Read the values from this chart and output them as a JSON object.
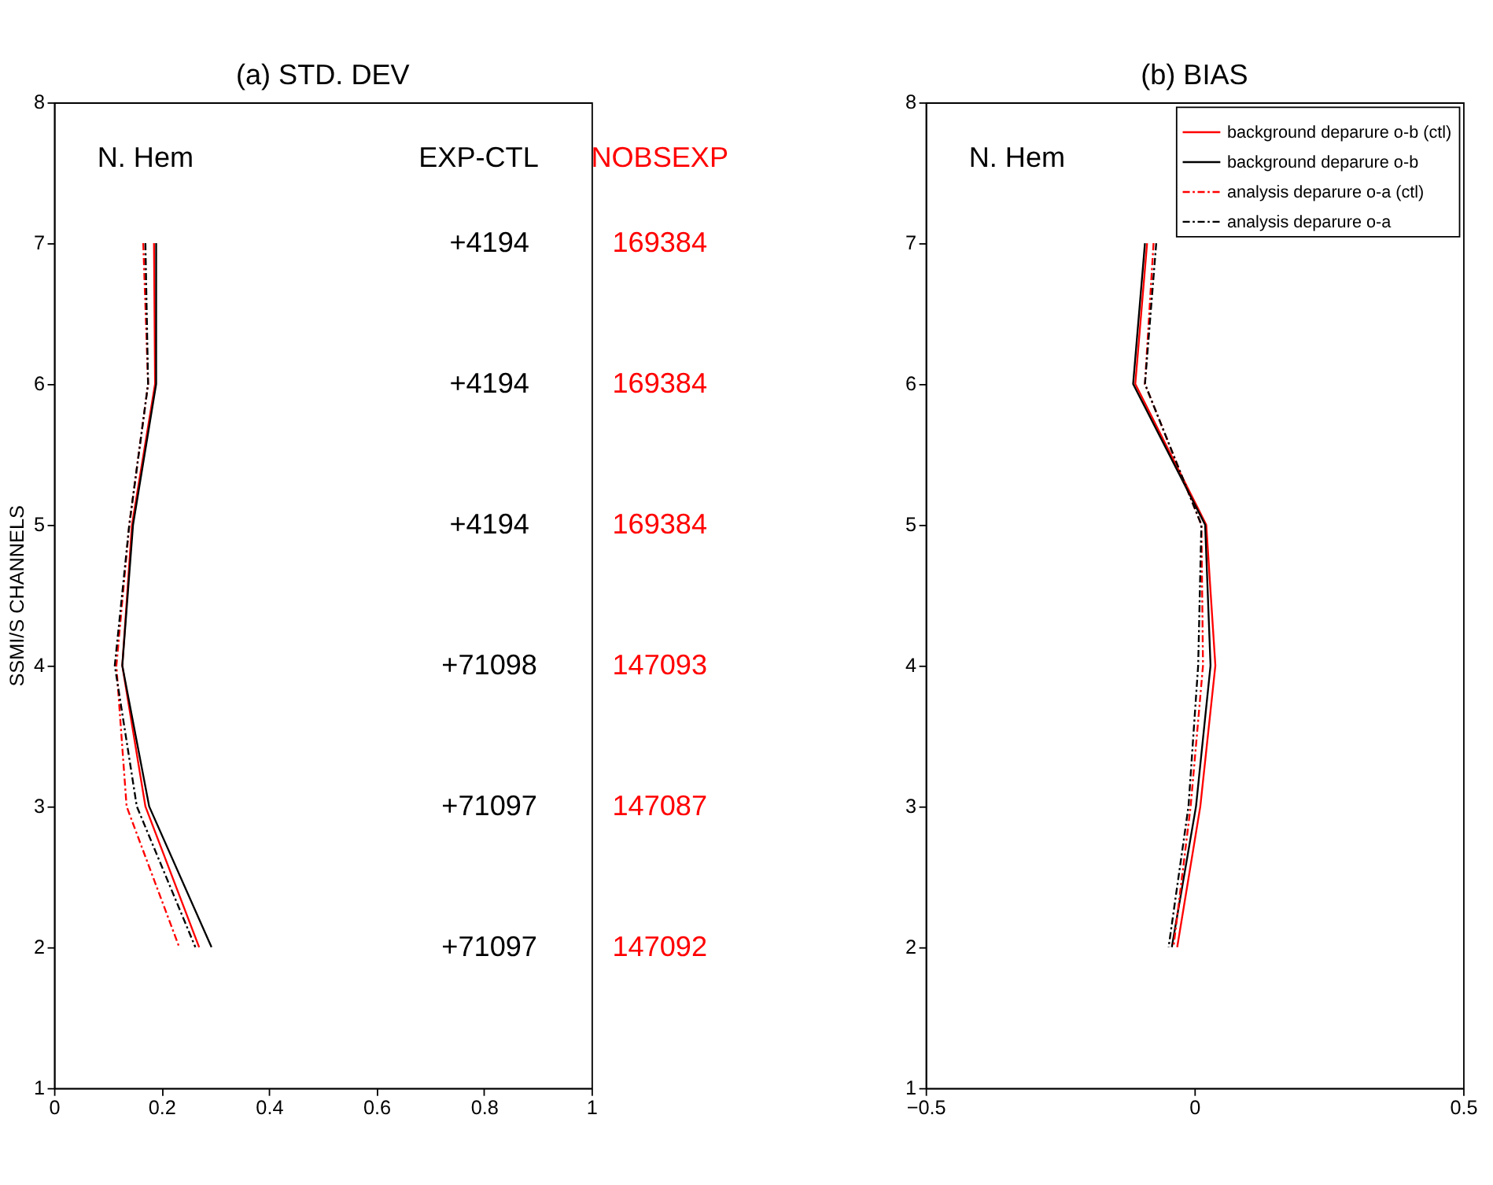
{
  "chart_data": [
    {
      "type": "line",
      "title": "(a) STD. DEV",
      "ylabel": "SSMI/S CHANNELS",
      "xlim": [
        0,
        1
      ],
      "xticks": [
        0,
        0.2,
        0.4,
        0.6,
        0.8,
        1
      ],
      "ylim": [
        1,
        8
      ],
      "yticks": [
        1,
        2,
        3,
        4,
        5,
        6,
        7,
        8
      ],
      "grid": false,
      "series": [
        {
          "color": "#ff0000",
          "line_style": "solid",
          "x": [
            0.27,
            0.17,
            0.127,
            0.145,
            0.188,
            0.186
          ],
          "values": [
            2,
            3,
            4,
            5,
            6,
            7
          ]
        },
        {
          "color": "#000000",
          "line_style": "solid",
          "x": [
            0.293,
            0.177,
            0.127,
            0.147,
            0.19,
            0.19
          ],
          "values": [
            2,
            3,
            4,
            5,
            6,
            7
          ]
        },
        {
          "color": "#ff0000",
          "line_style": "dashdot",
          "x": [
            0.233,
            0.135,
            0.116,
            0.14,
            0.175,
            0.166
          ],
          "values": [
            2,
            3,
            4,
            5,
            6,
            7
          ]
        },
        {
          "color": "#000000",
          "line_style": "dashdot",
          "x": [
            0.263,
            0.154,
            0.113,
            0.14,
            0.175,
            0.17
          ],
          "values": [
            2,
            3,
            4,
            5,
            6,
            7
          ]
        }
      ],
      "annotations": [
        "N. Hem",
        "EXP-CTL",
        "NOBSEXP",
        "+4194",
        "+4194",
        "+4194",
        "+71098",
        "+71097",
        "+71097",
        "169384",
        "169384",
        "169384",
        "147093",
        "147087",
        "147092"
      ]
    },
    {
      "type": "line",
      "title": "(b) BIAS",
      "xlim": [
        -0.5,
        0.5
      ],
      "xticks": [
        -0.5,
        0,
        0.5
      ],
      "ylim": [
        1,
        8
      ],
      "yticks": [
        1,
        2,
        3,
        4,
        5,
        6,
        7,
        8
      ],
      "grid": false,
      "legend": "top right",
      "series": [
        {
          "name": "background deparure o-b (ctl)",
          "color": "#ff0000",
          "line_style": "solid",
          "x": [
            -0.032,
            0.011,
            0.039,
            0.022,
            -0.11,
            -0.088
          ],
          "values": [
            2,
            3,
            4,
            5,
            6,
            7
          ]
        },
        {
          "name": "background deparure o-b",
          "color": "#000000",
          "line_style": "solid",
          "x": [
            -0.042,
            0.003,
            0.03,
            0.02,
            -0.114,
            -0.092
          ],
          "values": [
            2,
            3,
            4,
            5,
            6,
            7
          ]
        },
        {
          "name": "analysis deparure o-a (ctl)",
          "color": "#ff0000",
          "line_style": "dashdot",
          "x": [
            -0.039,
            -0.007,
            0.016,
            0.013,
            -0.092,
            -0.076
          ],
          "values": [
            2,
            3,
            4,
            5,
            6,
            7
          ]
        },
        {
          "name": "analysis deparure o-a",
          "color": "#000000",
          "line_style": "dashdot",
          "x": [
            -0.048,
            -0.011,
            0.007,
            0.013,
            -0.092,
            -0.071
          ],
          "values": [
            2,
            3,
            4,
            5,
            6,
            7
          ]
        }
      ],
      "annotations": [
        "N. Hem"
      ]
    }
  ]
}
